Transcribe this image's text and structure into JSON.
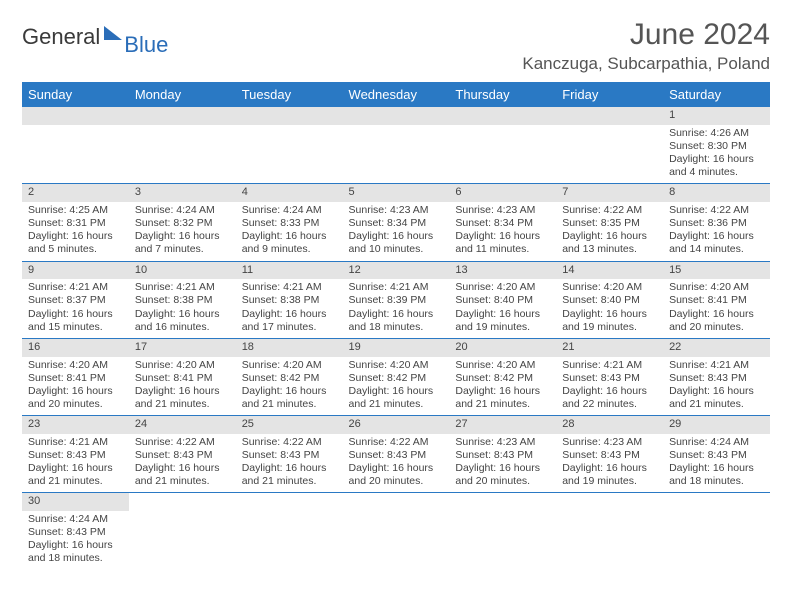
{
  "brand": {
    "part1": "General",
    "part2": "Blue"
  },
  "title": "June 2024",
  "location": "Kanczuga, Subcarpathia, Poland",
  "colors": {
    "header_bg": "#2a79c4",
    "header_text": "#ffffff",
    "daynum_bg": "#e4e4e4",
    "rule": "#2a79c4",
    "brand_blue": "#2a6db8"
  },
  "weekdays": [
    "Sunday",
    "Monday",
    "Tuesday",
    "Wednesday",
    "Thursday",
    "Friday",
    "Saturday"
  ],
  "days": {
    "1": {
      "sunrise": "4:26 AM",
      "sunset": "8:30 PM",
      "daylight": "16 hours and 4 minutes."
    },
    "2": {
      "sunrise": "4:25 AM",
      "sunset": "8:31 PM",
      "daylight": "16 hours and 5 minutes."
    },
    "3": {
      "sunrise": "4:24 AM",
      "sunset": "8:32 PM",
      "daylight": "16 hours and 7 minutes."
    },
    "4": {
      "sunrise": "4:24 AM",
      "sunset": "8:33 PM",
      "daylight": "16 hours and 9 minutes."
    },
    "5": {
      "sunrise": "4:23 AM",
      "sunset": "8:34 PM",
      "daylight": "16 hours and 10 minutes."
    },
    "6": {
      "sunrise": "4:23 AM",
      "sunset": "8:34 PM",
      "daylight": "16 hours and 11 minutes."
    },
    "7": {
      "sunrise": "4:22 AM",
      "sunset": "8:35 PM",
      "daylight": "16 hours and 13 minutes."
    },
    "8": {
      "sunrise": "4:22 AM",
      "sunset": "8:36 PM",
      "daylight": "16 hours and 14 minutes."
    },
    "9": {
      "sunrise": "4:21 AM",
      "sunset": "8:37 PM",
      "daylight": "16 hours and 15 minutes."
    },
    "10": {
      "sunrise": "4:21 AM",
      "sunset": "8:38 PM",
      "daylight": "16 hours and 16 minutes."
    },
    "11": {
      "sunrise": "4:21 AM",
      "sunset": "8:38 PM",
      "daylight": "16 hours and 17 minutes."
    },
    "12": {
      "sunrise": "4:21 AM",
      "sunset": "8:39 PM",
      "daylight": "16 hours and 18 minutes."
    },
    "13": {
      "sunrise": "4:20 AM",
      "sunset": "8:40 PM",
      "daylight": "16 hours and 19 minutes."
    },
    "14": {
      "sunrise": "4:20 AM",
      "sunset": "8:40 PM",
      "daylight": "16 hours and 19 minutes."
    },
    "15": {
      "sunrise": "4:20 AM",
      "sunset": "8:41 PM",
      "daylight": "16 hours and 20 minutes."
    },
    "16": {
      "sunrise": "4:20 AM",
      "sunset": "8:41 PM",
      "daylight": "16 hours and 20 minutes."
    },
    "17": {
      "sunrise": "4:20 AM",
      "sunset": "8:41 PM",
      "daylight": "16 hours and 21 minutes."
    },
    "18": {
      "sunrise": "4:20 AM",
      "sunset": "8:42 PM",
      "daylight": "16 hours and 21 minutes."
    },
    "19": {
      "sunrise": "4:20 AM",
      "sunset": "8:42 PM",
      "daylight": "16 hours and 21 minutes."
    },
    "20": {
      "sunrise": "4:20 AM",
      "sunset": "8:42 PM",
      "daylight": "16 hours and 21 minutes."
    },
    "21": {
      "sunrise": "4:21 AM",
      "sunset": "8:43 PM",
      "daylight": "16 hours and 22 minutes."
    },
    "22": {
      "sunrise": "4:21 AM",
      "sunset": "8:43 PM",
      "daylight": "16 hours and 21 minutes."
    },
    "23": {
      "sunrise": "4:21 AM",
      "sunset": "8:43 PM",
      "daylight": "16 hours and 21 minutes."
    },
    "24": {
      "sunrise": "4:22 AM",
      "sunset": "8:43 PM",
      "daylight": "16 hours and 21 minutes."
    },
    "25": {
      "sunrise": "4:22 AM",
      "sunset": "8:43 PM",
      "daylight": "16 hours and 21 minutes."
    },
    "26": {
      "sunrise": "4:22 AM",
      "sunset": "8:43 PM",
      "daylight": "16 hours and 20 minutes."
    },
    "27": {
      "sunrise": "4:23 AM",
      "sunset": "8:43 PM",
      "daylight": "16 hours and 20 minutes."
    },
    "28": {
      "sunrise": "4:23 AM",
      "sunset": "8:43 PM",
      "daylight": "16 hours and 19 minutes."
    },
    "29": {
      "sunrise": "4:24 AM",
      "sunset": "8:43 PM",
      "daylight": "16 hours and 18 minutes."
    },
    "30": {
      "sunrise": "4:24 AM",
      "sunset": "8:43 PM",
      "daylight": "16 hours and 18 minutes."
    }
  },
  "grid": [
    [
      null,
      null,
      null,
      null,
      null,
      null,
      "1"
    ],
    [
      "2",
      "3",
      "4",
      "5",
      "6",
      "7",
      "8"
    ],
    [
      "9",
      "10",
      "11",
      "12",
      "13",
      "14",
      "15"
    ],
    [
      "16",
      "17",
      "18",
      "19",
      "20",
      "21",
      "22"
    ],
    [
      "23",
      "24",
      "25",
      "26",
      "27",
      "28",
      "29"
    ],
    [
      "30",
      null,
      null,
      null,
      null,
      null,
      null
    ]
  ],
  "labels": {
    "sunrise": "Sunrise: ",
    "sunset": "Sunset: ",
    "daylight": "Daylight: "
  }
}
